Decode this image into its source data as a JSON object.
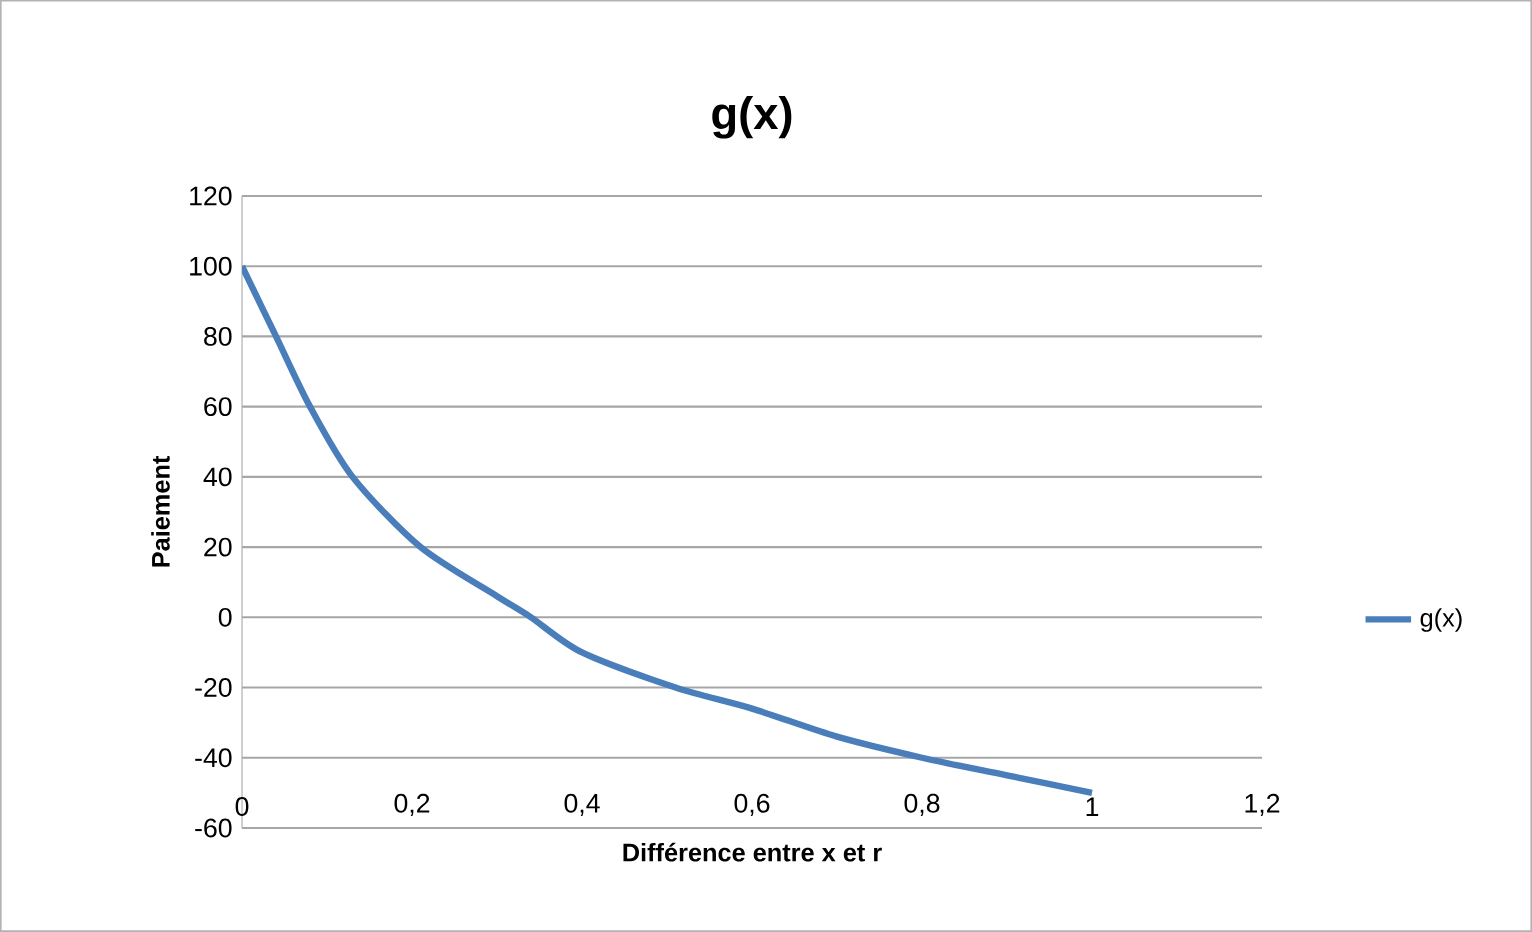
{
  "chart_data": {
    "type": "line",
    "title": "g(x)",
    "xlabel": "Différence entre x et r",
    "ylabel": "Paiement",
    "x": [
      0,
      0.04,
      0.08,
      0.13,
      0.21,
      0.3,
      0.34,
      0.4,
      0.51,
      0.6,
      0.7,
      0.8,
      0.9,
      1
    ],
    "series": [
      {
        "name": "g(x)",
        "color": "#4a7ebb",
        "values": [
          100,
          80,
          60,
          40,
          20,
          6,
          0,
          -10,
          -20,
          -26,
          -34,
          -40,
          -45,
          -50
        ]
      }
    ],
    "xlim": [
      0,
      1.2
    ],
    "xticks": [
      0,
      {
        "value": 0.2,
        "label": "0,2"
      },
      {
        "value": 0.4,
        "label": "0,4"
      },
      {
        "value": 0.6,
        "label": "0,6"
      },
      {
        "value": 0.8,
        "label": "0,8"
      },
      1,
      {
        "value": 1.2,
        "label": "1,2"
      }
    ],
    "ylim": [
      -60,
      120
    ],
    "yticks": [
      -60,
      -40,
      -20,
      0,
      20,
      40,
      60,
      80,
      100,
      120
    ],
    "grid": "y",
    "legend": "right",
    "marker": "none",
    "line_style": "solid"
  }
}
